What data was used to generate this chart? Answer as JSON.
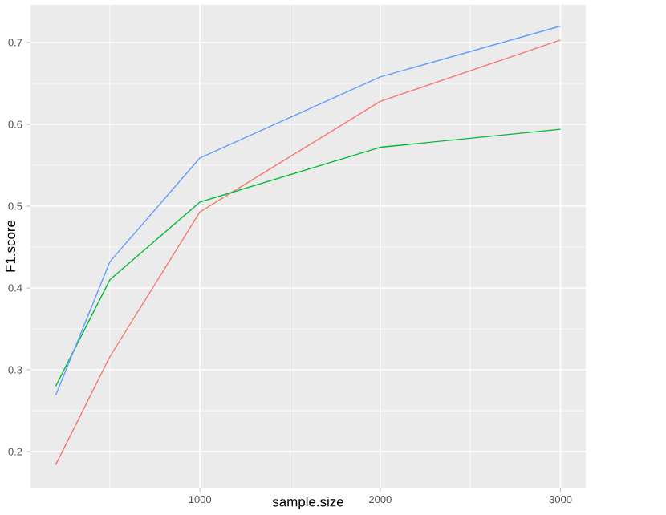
{
  "chart_data": {
    "type": "line",
    "xlabel": "sample.size",
    "ylabel": "F1.score",
    "xlim": [
      60,
      3140
    ],
    "ylim": [
      0.156,
      0.746
    ],
    "xticks": [
      1000,
      2000,
      3000
    ],
    "yticks": [
      0.2,
      0.3,
      0.4,
      0.5,
      0.6,
      0.7
    ],
    "grid": true,
    "series": [
      {
        "color": "#f8766d",
        "x": [
          200,
          500,
          1000,
          2000,
          3000
        ],
        "values": [
          0.184,
          0.316,
          0.493,
          0.628,
          0.703
        ]
      },
      {
        "color": "#00ba38",
        "x": [
          200,
          500,
          1000,
          2000,
          3000
        ],
        "values": [
          0.28,
          0.41,
          0.505,
          0.572,
          0.594
        ]
      },
      {
        "color": "#619cff",
        "x": [
          200,
          500,
          1000,
          2000,
          3000
        ],
        "values": [
          0.269,
          0.432,
          0.559,
          0.658,
          0.72
        ]
      }
    ]
  }
}
